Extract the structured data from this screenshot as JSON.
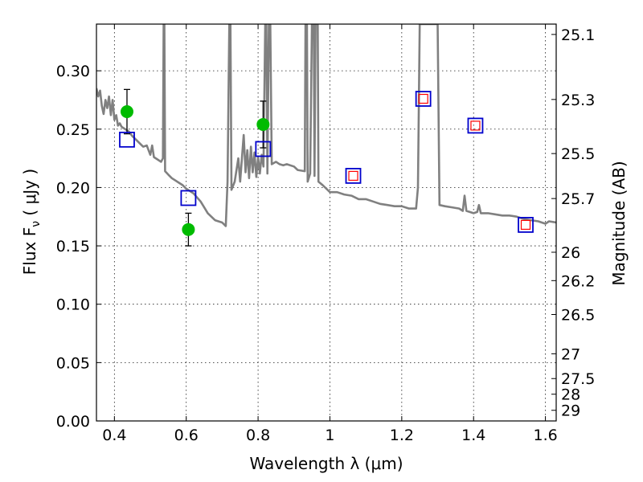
{
  "chart_data": {
    "type": "scatter",
    "xlabel": "Wavelength  λ (μm)",
    "ylabel": "Flux  F",
    "ylabel_sub": "ν",
    "ylabel_unit": " ( μJy )",
    "y2label": "Magnitude (AB)",
    "xlim": [
      0.35,
      1.63
    ],
    "ylim": [
      0.0,
      0.34
    ],
    "grid": true,
    "x_ticks": [
      {
        "value": 0.4,
        "label": "0.4"
      },
      {
        "value": 0.6,
        "label": "0.6"
      },
      {
        "value": 0.8,
        "label": "0.8"
      },
      {
        "value": 1.0,
        "label": "1"
      },
      {
        "value": 1.2,
        "label": "1.2"
      },
      {
        "value": 1.4,
        "label": "1.4"
      },
      {
        "value": 1.6,
        "label": "1.6"
      }
    ],
    "y_ticks": [
      {
        "value": 0.0,
        "label": "0.00"
      },
      {
        "value": 0.05,
        "label": "0.05"
      },
      {
        "value": 0.1,
        "label": "0.10"
      },
      {
        "value": 0.15,
        "label": "0.15"
      },
      {
        "value": 0.2,
        "label": "0.20"
      },
      {
        "value": 0.25,
        "label": "0.25"
      },
      {
        "value": 0.3,
        "label": "0.30"
      }
    ],
    "y2_ticks": [
      {
        "mag": 25.1,
        "label": "25.1"
      },
      {
        "mag": 25.3,
        "label": "25.3"
      },
      {
        "mag": 25.5,
        "label": "25.5"
      },
      {
        "mag": 25.7,
        "label": "25.7"
      },
      {
        "mag": 26.0,
        "label": "26"
      },
      {
        "mag": 26.2,
        "label": "26.2"
      },
      {
        "mag": 26.5,
        "label": "26.5"
      },
      {
        "mag": 27.0,
        "label": "27"
      },
      {
        "mag": 27.5,
        "label": "27.5"
      },
      {
        "mag": 28.0,
        "label": "28"
      },
      {
        "mag": 29.0,
        "label": "29"
      }
    ],
    "series": [
      {
        "type": "line",
        "color": "#808080",
        "points": [
          [
            0.35,
            0.285
          ],
          [
            0.355,
            0.278
          ],
          [
            0.36,
            0.283
          ],
          [
            0.365,
            0.27
          ],
          [
            0.37,
            0.263
          ],
          [
            0.375,
            0.275
          ],
          [
            0.38,
            0.268
          ],
          [
            0.385,
            0.278
          ],
          [
            0.39,
            0.262
          ],
          [
            0.395,
            0.275
          ],
          [
            0.4,
            0.258
          ],
          [
            0.405,
            0.262
          ],
          [
            0.41,
            0.253
          ],
          [
            0.415,
            0.255
          ],
          [
            0.42,
            0.252
          ],
          [
            0.43,
            0.25
          ],
          [
            0.44,
            0.248
          ],
          [
            0.45,
            0.244
          ],
          [
            0.46,
            0.241
          ],
          [
            0.47,
            0.238
          ],
          [
            0.48,
            0.235
          ],
          [
            0.49,
            0.236
          ],
          [
            0.5,
            0.228
          ],
          [
            0.505,
            0.236
          ],
          [
            0.51,
            0.226
          ],
          [
            0.52,
            0.224
          ],
          [
            0.53,
            0.222
          ],
          [
            0.535,
            0.225
          ],
          [
            0.537,
            0.34
          ],
          [
            0.539,
            0.34
          ],
          [
            0.541,
            0.214
          ],
          [
            0.55,
            0.211
          ],
          [
            0.56,
            0.208
          ],
          [
            0.57,
            0.206
          ],
          [
            0.58,
            0.204
          ],
          [
            0.59,
            0.202
          ],
          [
            0.6,
            0.199
          ],
          [
            0.62,
            0.195
          ],
          [
            0.64,
            0.188
          ],
          [
            0.66,
            0.178
          ],
          [
            0.68,
            0.172
          ],
          [
            0.7,
            0.17
          ],
          [
            0.71,
            0.167
          ],
          [
            0.715,
            0.205
          ],
          [
            0.72,
            0.34
          ],
          [
            0.723,
            0.34
          ],
          [
            0.726,
            0.198
          ],
          [
            0.735,
            0.205
          ],
          [
            0.745,
            0.225
          ],
          [
            0.75,
            0.205
          ],
          [
            0.76,
            0.245
          ],
          [
            0.765,
            0.213
          ],
          [
            0.77,
            0.232
          ],
          [
            0.775,
            0.208
          ],
          [
            0.78,
            0.235
          ],
          [
            0.785,
            0.213
          ],
          [
            0.79,
            0.23
          ],
          [
            0.795,
            0.209
          ],
          [
            0.8,
            0.226
          ],
          [
            0.805,
            0.212
          ],
          [
            0.81,
            0.228
          ],
          [
            0.815,
            0.218
          ],
          [
            0.82,
            0.34
          ],
          [
            0.823,
            0.34
          ],
          [
            0.826,
            0.212
          ],
          [
            0.83,
            0.34
          ],
          [
            0.834,
            0.34
          ],
          [
            0.838,
            0.22
          ],
          [
            0.85,
            0.222
          ],
          [
            0.86,
            0.22
          ],
          [
            0.87,
            0.219
          ],
          [
            0.88,
            0.22
          ],
          [
            0.9,
            0.218
          ],
          [
            0.91,
            0.215
          ],
          [
            0.93,
            0.214
          ],
          [
            0.932,
            0.34
          ],
          [
            0.936,
            0.34
          ],
          [
            0.938,
            0.205
          ],
          [
            0.945,
            0.212
          ],
          [
            0.95,
            0.34
          ],
          [
            0.955,
            0.34
          ],
          [
            0.957,
            0.21
          ],
          [
            0.96,
            0.34
          ],
          [
            0.966,
            0.34
          ],
          [
            0.968,
            0.205
          ],
          [
            0.98,
            0.202
          ],
          [
            1.0,
            0.196
          ],
          [
            1.02,
            0.196
          ],
          [
            1.04,
            0.194
          ],
          [
            1.06,
            0.193
          ],
          [
            1.08,
            0.19
          ],
          [
            1.1,
            0.19
          ],
          [
            1.12,
            0.188
          ],
          [
            1.14,
            0.186
          ],
          [
            1.16,
            0.185
          ],
          [
            1.18,
            0.184
          ],
          [
            1.2,
            0.184
          ],
          [
            1.22,
            0.182
          ],
          [
            1.24,
            0.182
          ],
          [
            1.245,
            0.2
          ],
          [
            1.25,
            0.34
          ],
          [
            1.29,
            0.34
          ],
          [
            1.3,
            0.34
          ],
          [
            1.305,
            0.185
          ],
          [
            1.32,
            0.184
          ],
          [
            1.34,
            0.183
          ],
          [
            1.36,
            0.182
          ],
          [
            1.37,
            0.18
          ],
          [
            1.375,
            0.193
          ],
          [
            1.38,
            0.18
          ],
          [
            1.4,
            0.178
          ],
          [
            1.41,
            0.179
          ],
          [
            1.415,
            0.185
          ],
          [
            1.42,
            0.178
          ],
          [
            1.44,
            0.178
          ],
          [
            1.46,
            0.177
          ],
          [
            1.48,
            0.176
          ],
          [
            1.5,
            0.176
          ],
          [
            1.52,
            0.175
          ],
          [
            1.54,
            0.173
          ],
          [
            1.56,
            0.172
          ],
          [
            1.58,
            0.171
          ],
          [
            1.6,
            0.169
          ],
          [
            1.61,
            0.171
          ],
          [
            1.63,
            0.17
          ]
        ]
      },
      {
        "type": "scatter",
        "marker": "circle",
        "color": "#00bb00",
        "points": [
          {
            "x": 0.435,
            "y": 0.265,
            "yerr": 0.019
          },
          {
            "x": 0.606,
            "y": 0.164,
            "yerr": 0.014
          },
          {
            "x": 0.814,
            "y": 0.254,
            "yerr": 0.02
          }
        ]
      },
      {
        "type": "scatter",
        "marker": "square-open",
        "color": "#0000cc",
        "points": [
          {
            "x": 0.435,
            "y": 0.241
          },
          {
            "x": 0.606,
            "y": 0.191
          },
          {
            "x": 0.814,
            "y": 0.233
          },
          {
            "x": 1.065,
            "y": 0.21
          },
          {
            "x": 1.26,
            "y": 0.276
          },
          {
            "x": 1.405,
            "y": 0.253
          },
          {
            "x": 1.545,
            "y": 0.168
          }
        ]
      },
      {
        "type": "scatter",
        "marker": "square-open-small",
        "color": "#ff0000",
        "points": [
          {
            "x": 1.065,
            "y": 0.21
          },
          {
            "x": 1.26,
            "y": 0.276
          },
          {
            "x": 1.405,
            "y": 0.253
          },
          {
            "x": 1.545,
            "y": 0.168
          }
        ]
      }
    ]
  }
}
